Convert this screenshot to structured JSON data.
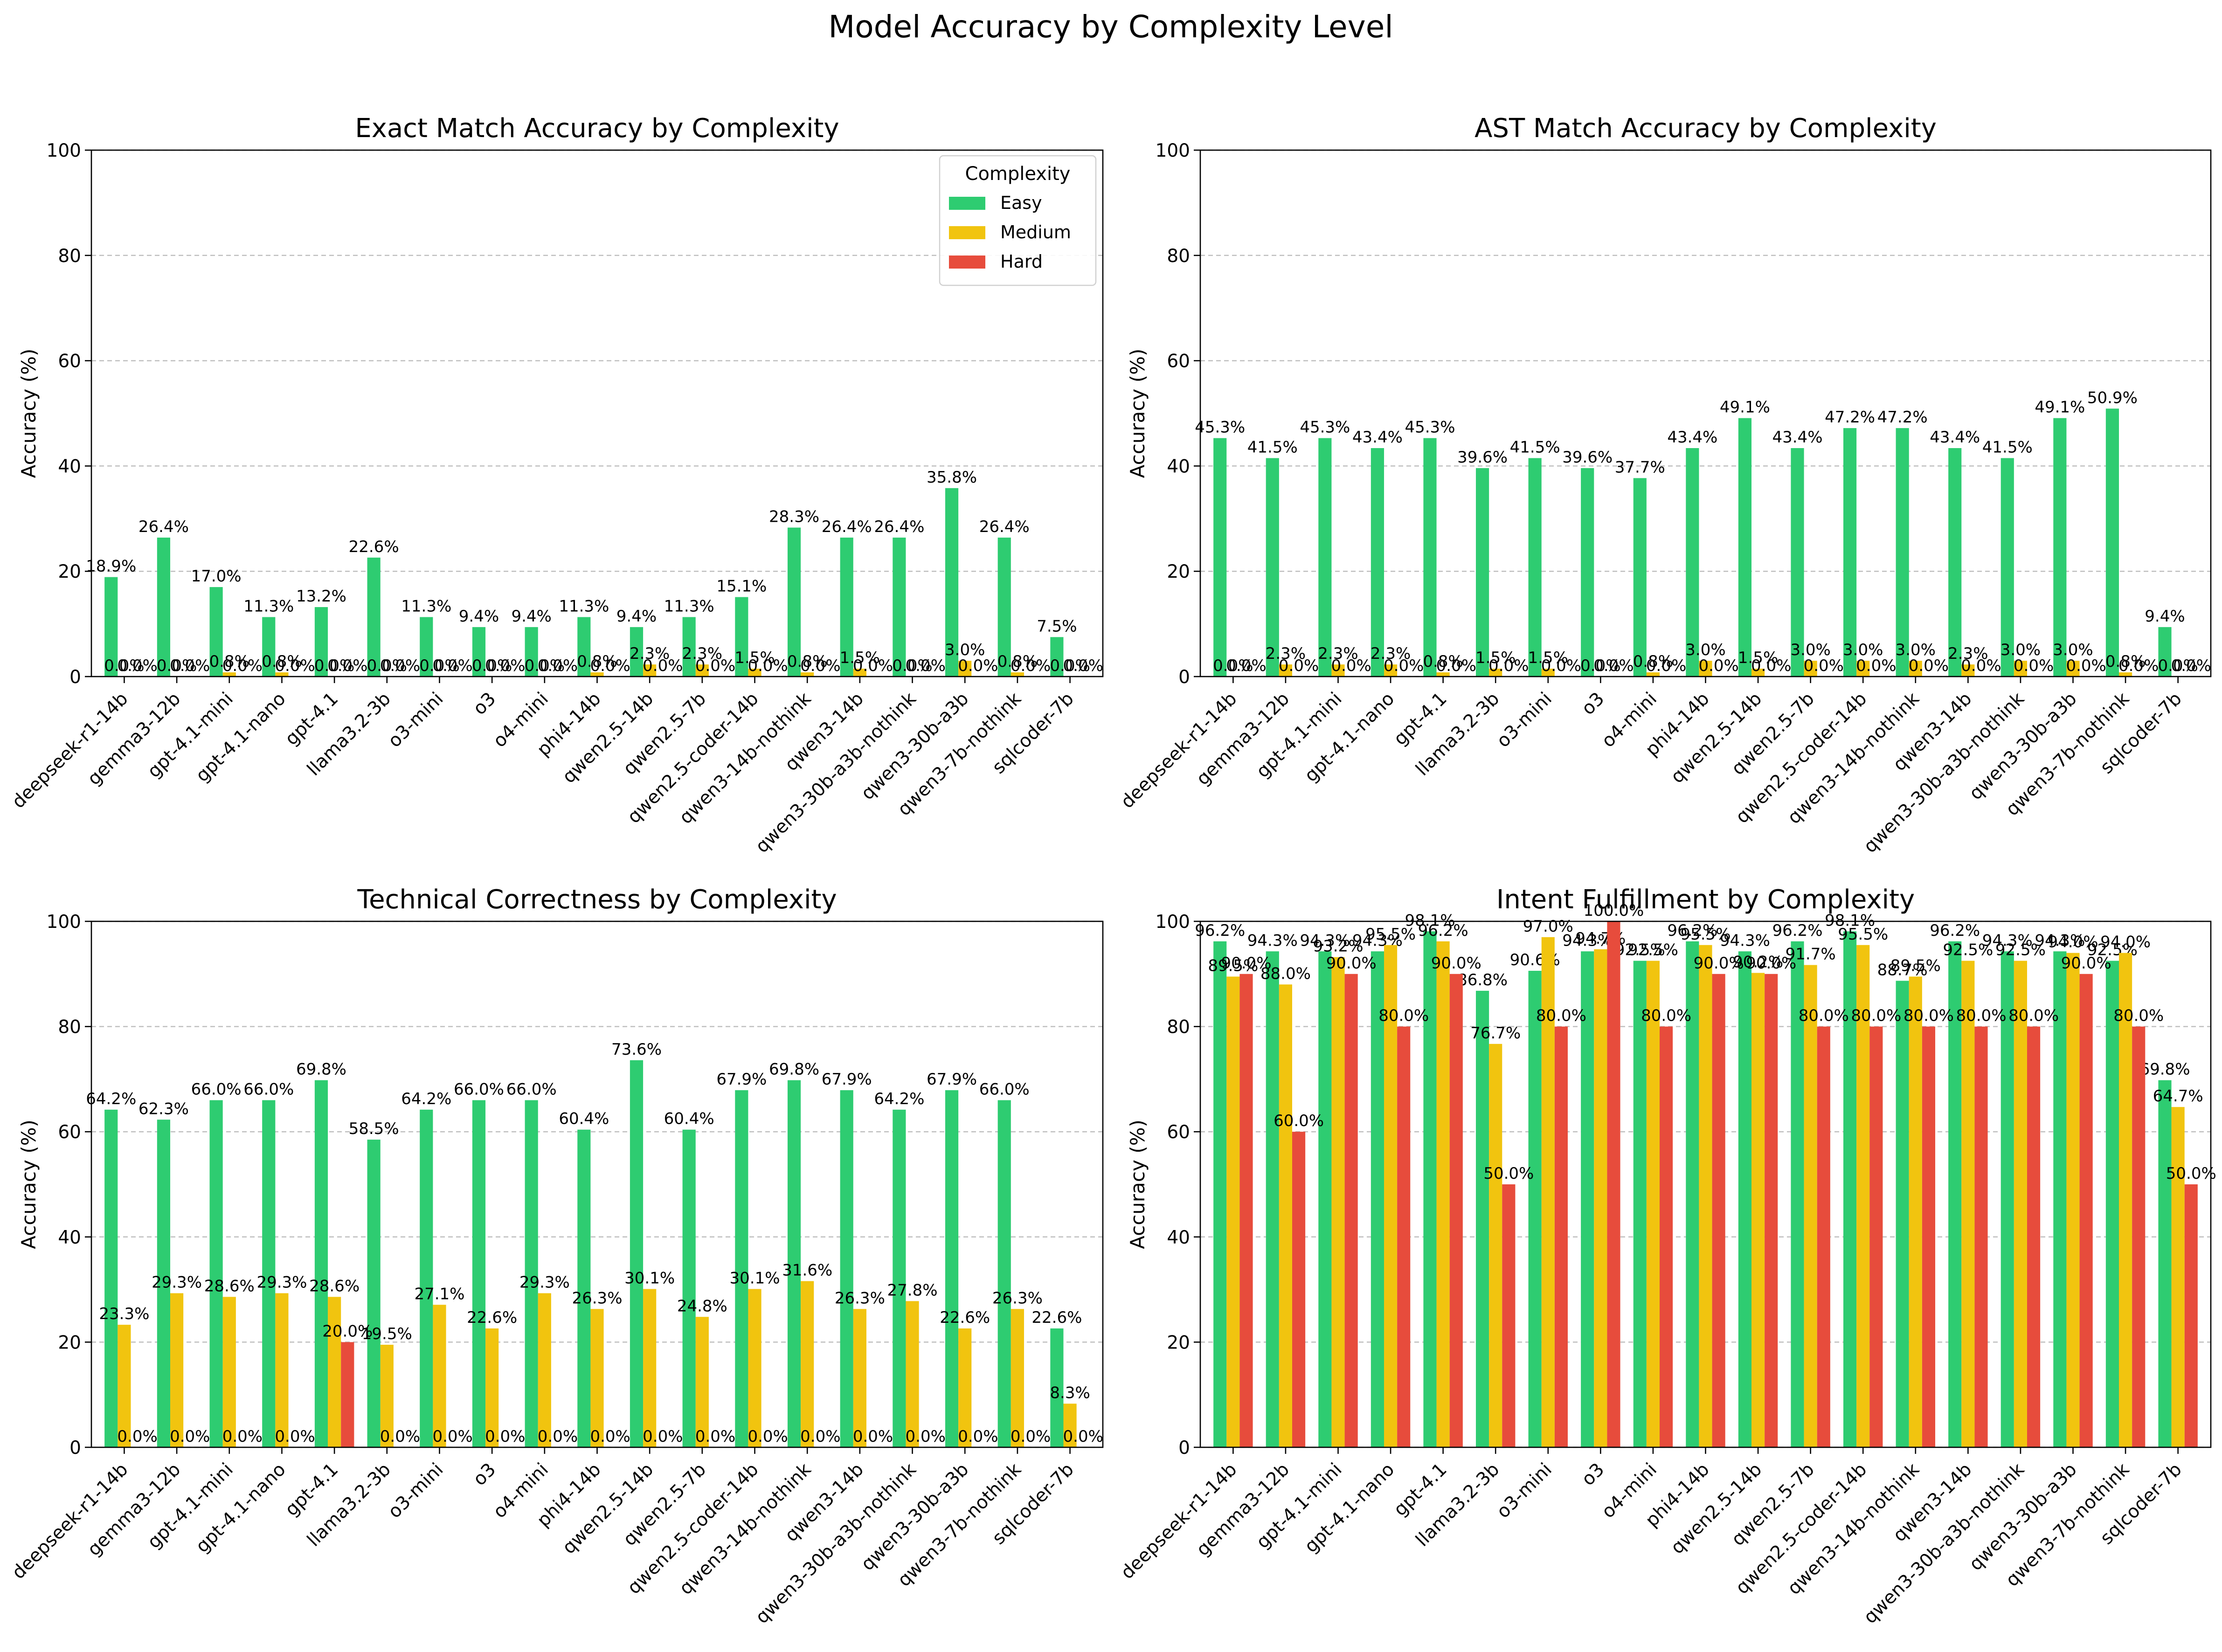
{
  "figure": {
    "title": "Model Accuracy by Complexity Level"
  },
  "colors": {
    "Easy": "#2ecc71",
    "Medium": "#f1c40f",
    "Hard": "#e74c3c"
  },
  "legend": {
    "title": "Complexity",
    "placement": "upper right (first panel only)"
  },
  "chart_data": [
    {
      "type": "bar",
      "title": "Exact Match Accuracy by Complexity",
      "ylabel": "Accuracy (%)",
      "ylim": [
        0,
        100
      ],
      "yticks": [
        0,
        20,
        40,
        60,
        80,
        100
      ],
      "grid": "y dashed",
      "categories": [
        "deepseek-r1-14b",
        "gemma3-12b",
        "gpt-4.1-mini",
        "gpt-4.1-nano",
        "gpt-4.1",
        "llama3.2-3b",
        "o3-mini",
        "o3",
        "o4-mini",
        "phi4-14b",
        "qwen2.5-14b",
        "qwen2.5-7b",
        "qwen2.5-coder-14b",
        "qwen3-14b-nothink",
        "qwen3-14b",
        "qwen3-30b-a3b-nothink",
        "qwen3-30b-a3b",
        "qwen3-7b-nothink",
        "sqlcoder-7b"
      ],
      "series": [
        {
          "name": "Easy",
          "values": [
            18.9,
            26.4,
            17.0,
            11.3,
            13.2,
            22.6,
            11.3,
            9.4,
            9.4,
            11.3,
            9.4,
            11.3,
            15.1,
            28.3,
            26.4,
            26.4,
            35.8,
            26.4,
            7.5
          ]
        },
        {
          "name": "Medium",
          "values": [
            0.0,
            0.0,
            0.8,
            0.8,
            0.0,
            0.0,
            0.0,
            0.0,
            0.0,
            0.8,
            2.3,
            2.3,
            1.5,
            0.8,
            1.5,
            0.0,
            3.0,
            0.8,
            0.0
          ]
        },
        {
          "name": "Hard",
          "values": [
            0.0,
            0.0,
            0.0,
            0.0,
            0.0,
            0.0,
            0.0,
            0.0,
            0.0,
            0.0,
            0.0,
            0.0,
            0.0,
            0.0,
            0.0,
            0.0,
            0.0,
            0.0,
            0.0
          ]
        }
      ]
    },
    {
      "type": "bar",
      "title": "AST Match Accuracy by Complexity",
      "ylabel": "Accuracy (%)",
      "ylim": [
        0,
        100
      ],
      "yticks": [
        0,
        20,
        40,
        60,
        80,
        100
      ],
      "grid": "y dashed",
      "categories": [
        "deepseek-r1-14b",
        "gemma3-12b",
        "gpt-4.1-mini",
        "gpt-4.1-nano",
        "gpt-4.1",
        "llama3.2-3b",
        "o3-mini",
        "o3",
        "o4-mini",
        "phi4-14b",
        "qwen2.5-14b",
        "qwen2.5-7b",
        "qwen2.5-coder-14b",
        "qwen3-14b-nothink",
        "qwen3-14b",
        "qwen3-30b-a3b-nothink",
        "qwen3-30b-a3b",
        "qwen3-7b-nothink",
        "sqlcoder-7b"
      ],
      "series": [
        {
          "name": "Easy",
          "values": [
            45.3,
            41.5,
            45.3,
            43.4,
            45.3,
            39.6,
            41.5,
            39.6,
            37.7,
            43.4,
            49.1,
            43.4,
            47.2,
            47.2,
            43.4,
            41.5,
            49.1,
            50.9,
            9.4
          ]
        },
        {
          "name": "Medium",
          "values": [
            0.0,
            2.3,
            2.3,
            2.3,
            0.8,
            1.5,
            1.5,
            0.0,
            0.8,
            3.0,
            1.5,
            3.0,
            3.0,
            3.0,
            2.3,
            3.0,
            3.0,
            0.8,
            0.0
          ]
        },
        {
          "name": "Hard",
          "values": [
            0.0,
            0.0,
            0.0,
            0.0,
            0.0,
            0.0,
            0.0,
            0.0,
            0.0,
            0.0,
            0.0,
            0.0,
            0.0,
            0.0,
            0.0,
            0.0,
            0.0,
            0.0,
            0.0
          ]
        }
      ]
    },
    {
      "type": "bar",
      "title": "Technical Correctness by Complexity",
      "ylabel": "Accuracy (%)",
      "ylim": [
        0,
        100
      ],
      "yticks": [
        0,
        20,
        40,
        60,
        80,
        100
      ],
      "grid": "y dashed",
      "categories": [
        "deepseek-r1-14b",
        "gemma3-12b",
        "gpt-4.1-mini",
        "gpt-4.1-nano",
        "gpt-4.1",
        "llama3.2-3b",
        "o3-mini",
        "o3",
        "o4-mini",
        "phi4-14b",
        "qwen2.5-14b",
        "qwen2.5-7b",
        "qwen2.5-coder-14b",
        "qwen3-14b-nothink",
        "qwen3-14b",
        "qwen3-30b-a3b-nothink",
        "qwen3-30b-a3b",
        "qwen3-7b-nothink",
        "sqlcoder-7b"
      ],
      "series": [
        {
          "name": "Easy",
          "values": [
            64.2,
            62.3,
            66.0,
            66.0,
            69.8,
            58.5,
            64.2,
            66.0,
            66.0,
            60.4,
            73.6,
            60.4,
            67.9,
            69.8,
            67.9,
            64.2,
            67.9,
            66.0,
            22.6
          ]
        },
        {
          "name": "Medium",
          "values": [
            23.3,
            29.3,
            28.6,
            29.3,
            28.6,
            19.5,
            27.1,
            22.6,
            29.3,
            26.3,
            30.1,
            24.8,
            30.1,
            31.6,
            26.3,
            27.8,
            22.6,
            26.3,
            8.3
          ]
        },
        {
          "name": "Hard",
          "values": [
            0.0,
            0.0,
            0.0,
            0.0,
            20.0,
            0.0,
            0.0,
            0.0,
            0.0,
            0.0,
            0.0,
            0.0,
            0.0,
            0.0,
            0.0,
            0.0,
            0.0,
            0.0,
            0.0
          ]
        }
      ]
    },
    {
      "type": "bar",
      "title": "Intent Fulfillment by Complexity",
      "ylabel": "Accuracy (%)",
      "ylim": [
        0,
        100
      ],
      "yticks": [
        0,
        20,
        40,
        60,
        80,
        100
      ],
      "grid": "y dashed",
      "categories": [
        "deepseek-r1-14b",
        "gemma3-12b",
        "gpt-4.1-mini",
        "gpt-4.1-nano",
        "gpt-4.1",
        "llama3.2-3b",
        "o3-mini",
        "o3",
        "o4-mini",
        "phi4-14b",
        "qwen2.5-14b",
        "qwen2.5-7b",
        "qwen2.5-coder-14b",
        "qwen3-14b-nothink",
        "qwen3-14b",
        "qwen3-30b-a3b-nothink",
        "qwen3-30b-a3b",
        "qwen3-7b-nothink",
        "sqlcoder-7b"
      ],
      "series": [
        {
          "name": "Easy",
          "values": [
            96.2,
            94.3,
            94.3,
            94.3,
            98.1,
            86.8,
            90.6,
            94.3,
            92.5,
            96.2,
            94.3,
            96.2,
            98.1,
            88.7,
            96.2,
            94.3,
            94.3,
            92.5,
            69.8
          ]
        },
        {
          "name": "Medium",
          "values": [
            89.5,
            88.0,
            93.2,
            95.5,
            96.2,
            76.7,
            97.0,
            94.7,
            92.5,
            95.5,
            90.2,
            91.7,
            95.5,
            89.5,
            92.5,
            92.5,
            94.0,
            94.0,
            64.7
          ]
        },
        {
          "name": "Hard",
          "values": [
            90.0,
            60.0,
            90.0,
            80.0,
            90.0,
            50.0,
            80.0,
            100.0,
            80.0,
            90.0,
            90.0,
            80.0,
            80.0,
            80.0,
            80.0,
            80.0,
            90.0,
            80.0,
            50.0
          ]
        }
      ]
    }
  ]
}
